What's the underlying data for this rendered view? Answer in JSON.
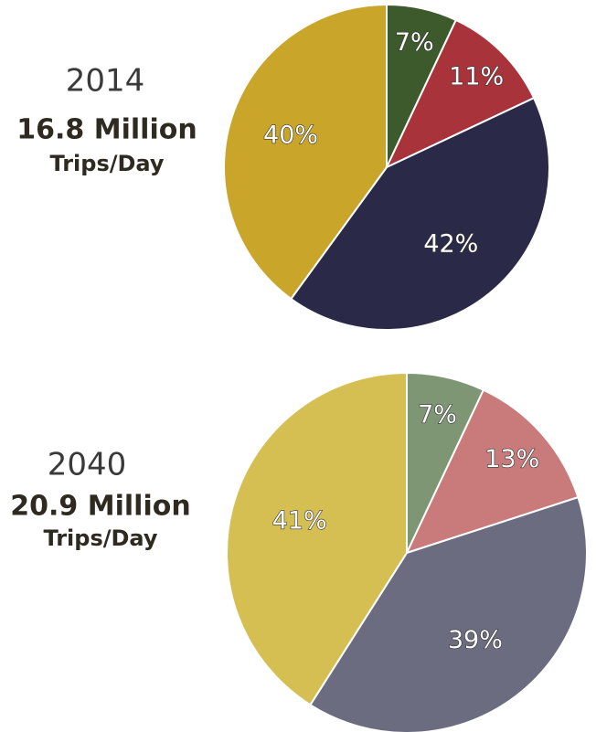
{
  "chart_data": [
    {
      "type": "pie",
      "title": "2014",
      "subtitle": "16.8 Million",
      "note": "Trips/Day",
      "values": [
        7,
        11,
        42,
        40
      ],
      "value_labels": [
        "7%",
        "11%",
        "42%",
        "40%"
      ],
      "colors": [
        "#3d5a2c",
        "#a8333a",
        "#2a2a48",
        "#c9a52a"
      ]
    },
    {
      "type": "pie",
      "title": "2040",
      "subtitle": "20.9 Million",
      "note": "Trips/Day",
      "values": [
        7,
        13,
        39,
        41
      ],
      "value_labels": [
        "7%",
        "13%",
        "39%",
        "41%"
      ],
      "colors": [
        "#7e9674",
        "#c97a7a",
        "#6c6c80",
        "#d6bf52"
      ]
    }
  ]
}
